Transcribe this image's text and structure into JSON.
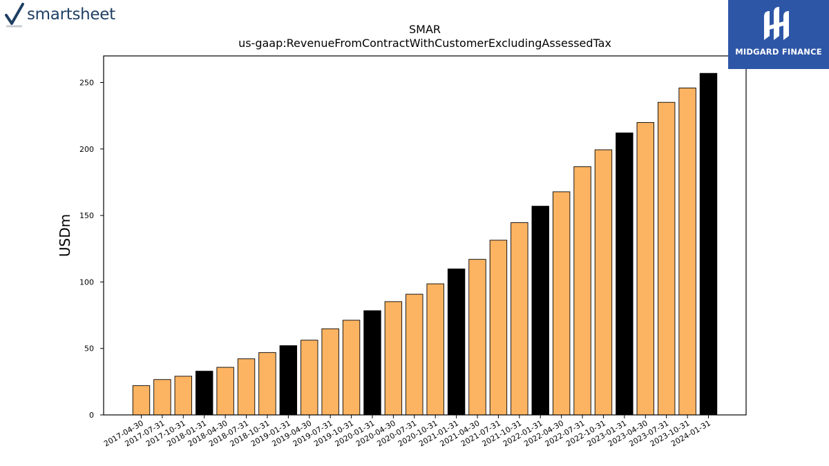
{
  "branding": {
    "left_logo_text": "smartsheet",
    "right_logo_text": "MIDGARD FINANCE"
  },
  "chart_data": {
    "type": "bar",
    "title": "SMAR",
    "subtitle": "us-gaap:RevenueFromContractWithCustomerExcludingAssessedTax",
    "xlabel": "",
    "ylabel": "USDm",
    "ylim": [
      0,
      270
    ],
    "yticks": [
      0,
      50,
      100,
      150,
      200,
      250
    ],
    "grid": false,
    "colors": {
      "quarter": "#fdb462",
      "fiscal_year_end": "#000000",
      "edge": "#000000"
    },
    "categories": [
      "2017-04-30",
      "2017-07-31",
      "2017-10-31",
      "2018-01-31",
      "2018-04-30",
      "2018-07-31",
      "2018-10-31",
      "2019-01-31",
      "2019-04-30",
      "2019-07-31",
      "2019-10-31",
      "2020-01-31",
      "2020-04-30",
      "2020-07-31",
      "2020-10-31",
      "2021-01-31",
      "2021-04-30",
      "2021-07-31",
      "2021-10-31",
      "2022-01-31",
      "2022-04-30",
      "2022-07-31",
      "2022-10-31",
      "2023-01-31",
      "2023-04-30",
      "2023-07-31",
      "2023-10-31",
      "2024-01-31"
    ],
    "values": [
      22.0,
      26.6,
      29.1,
      32.9,
      35.8,
      42.2,
      46.9,
      52.1,
      56.2,
      64.8,
      71.2,
      78.4,
      85.2,
      90.8,
      98.6,
      109.8,
      117.0,
      131.4,
      144.6,
      157.0,
      167.8,
      186.7,
      199.4,
      212.1,
      219.9,
      235.1,
      245.9,
      256.9
    ],
    "fiscal_year_end": [
      false,
      false,
      false,
      true,
      false,
      false,
      false,
      true,
      false,
      false,
      false,
      true,
      false,
      false,
      false,
      true,
      false,
      false,
      false,
      true,
      false,
      false,
      false,
      true,
      false,
      false,
      false,
      true
    ]
  }
}
